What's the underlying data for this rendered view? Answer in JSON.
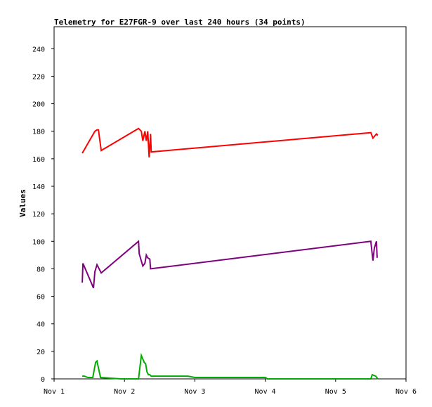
{
  "chart_data": {
    "type": "line",
    "title": "Telemetry for E27FGR-9 over last 240 hours (34 points)",
    "xlabel": "",
    "ylabel": "Values",
    "x_ticks": [
      {
        "value": 1,
        "label": "Nov 1"
      },
      {
        "value": 2,
        "label": "Nov 2"
      },
      {
        "value": 3,
        "label": "Nov 3"
      },
      {
        "value": 4,
        "label": "Nov 4"
      },
      {
        "value": 5,
        "label": "Nov 5"
      },
      {
        "value": 6,
        "label": "Nov 6"
      }
    ],
    "xlim": [
      1,
      6
    ],
    "y_ticks": [
      0,
      20,
      40,
      60,
      80,
      100,
      120,
      140,
      160,
      180,
      200,
      220,
      240
    ],
    "ylim": [
      0,
      256
    ],
    "grid": false,
    "legend": "none",
    "series": [
      {
        "color": "#ff0000",
        "points": [
          [
            1.4,
            164
          ],
          [
            1.58,
            180
          ],
          [
            1.61,
            181
          ],
          [
            1.63,
            181
          ],
          [
            1.67,
            166
          ],
          [
            2.2,
            182
          ],
          [
            2.24,
            180
          ],
          [
            2.26,
            173
          ],
          [
            2.29,
            180
          ],
          [
            2.31,
            173
          ],
          [
            2.33,
            180
          ],
          [
            2.35,
            161
          ],
          [
            2.37,
            178
          ],
          [
            2.38,
            165
          ],
          [
            5.5,
            179
          ],
          [
            5.53,
            175
          ],
          [
            5.58,
            178
          ],
          [
            5.6,
            177
          ]
        ]
      },
      {
        "color": "#800080",
        "points": [
          [
            1.4,
            70
          ],
          [
            1.41,
            84
          ],
          [
            1.56,
            66
          ],
          [
            1.58,
            78
          ],
          [
            1.61,
            83
          ],
          [
            1.67,
            77
          ],
          [
            2.2,
            100
          ],
          [
            2.21,
            91
          ],
          [
            2.26,
            82
          ],
          [
            2.29,
            84
          ],
          [
            2.31,
            90
          ],
          [
            2.33,
            88
          ],
          [
            2.36,
            87
          ],
          [
            2.37,
            80
          ],
          [
            5.5,
            100
          ],
          [
            5.53,
            86
          ],
          [
            5.55,
            95
          ],
          [
            5.58,
            100
          ],
          [
            5.59,
            88
          ]
        ]
      },
      {
        "color": "#00aa00",
        "points": [
          [
            1.4,
            2
          ],
          [
            1.43,
            2
          ],
          [
            1.48,
            1
          ],
          [
            1.55,
            1
          ],
          [
            1.59,
            12
          ],
          [
            1.61,
            13
          ],
          [
            1.63,
            8
          ],
          [
            1.66,
            1
          ],
          [
            1.95,
            0
          ],
          [
            2.2,
            0
          ],
          [
            2.24,
            17
          ],
          [
            2.28,
            12
          ],
          [
            2.3,
            11
          ],
          [
            2.32,
            5
          ],
          [
            2.34,
            3
          ],
          [
            2.36,
            3
          ],
          [
            2.38,
            2
          ],
          [
            2.4,
            2
          ],
          [
            2.9,
            2
          ],
          [
            3,
            1
          ],
          [
            4,
            1
          ],
          [
            4.03,
            0
          ],
          [
            5.5,
            0
          ],
          [
            5.52,
            3
          ],
          [
            5.57,
            2
          ],
          [
            5.6,
            0
          ]
        ]
      }
    ]
  }
}
